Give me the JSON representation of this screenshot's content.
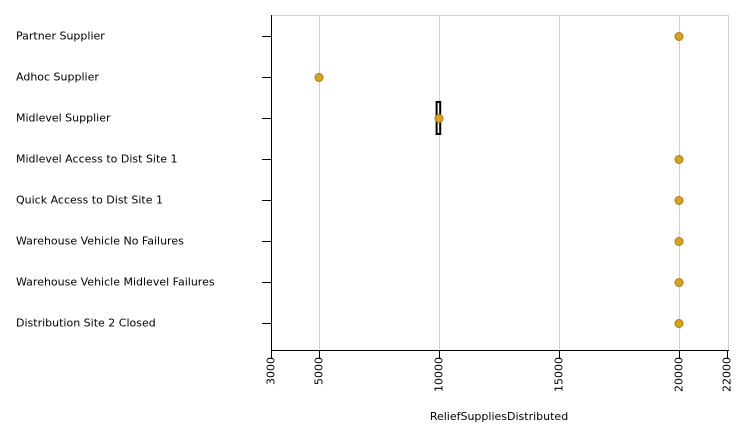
{
  "chart_data": {
    "type": "dot",
    "x_label": "ReliefSuppliesDistributed",
    "categories": [
      "Partner Supplier",
      "Adhoc Supplier",
      "Midlevel Supplier",
      "Midlevel Access to Dist Site 1",
      "Quick Access to Dist Site 1",
      "Warehouse Vehicle No Failures",
      "Warehouse Vehicle Midlevel Failures",
      "Distribution Site 2 Closed"
    ],
    "values": [
      20000,
      5000,
      10000,
      20000,
      20000,
      20000,
      20000,
      20000
    ],
    "ranges": [
      null,
      null,
      [
        9900,
        10050
      ],
      null,
      null,
      null,
      null,
      null
    ],
    "color": "#d9a21b",
    "xlim": [
      3000,
      22000
    ],
    "xticks": [
      3000,
      5000,
      10000,
      15000,
      20000,
      22000
    ],
    "grid": true
  }
}
